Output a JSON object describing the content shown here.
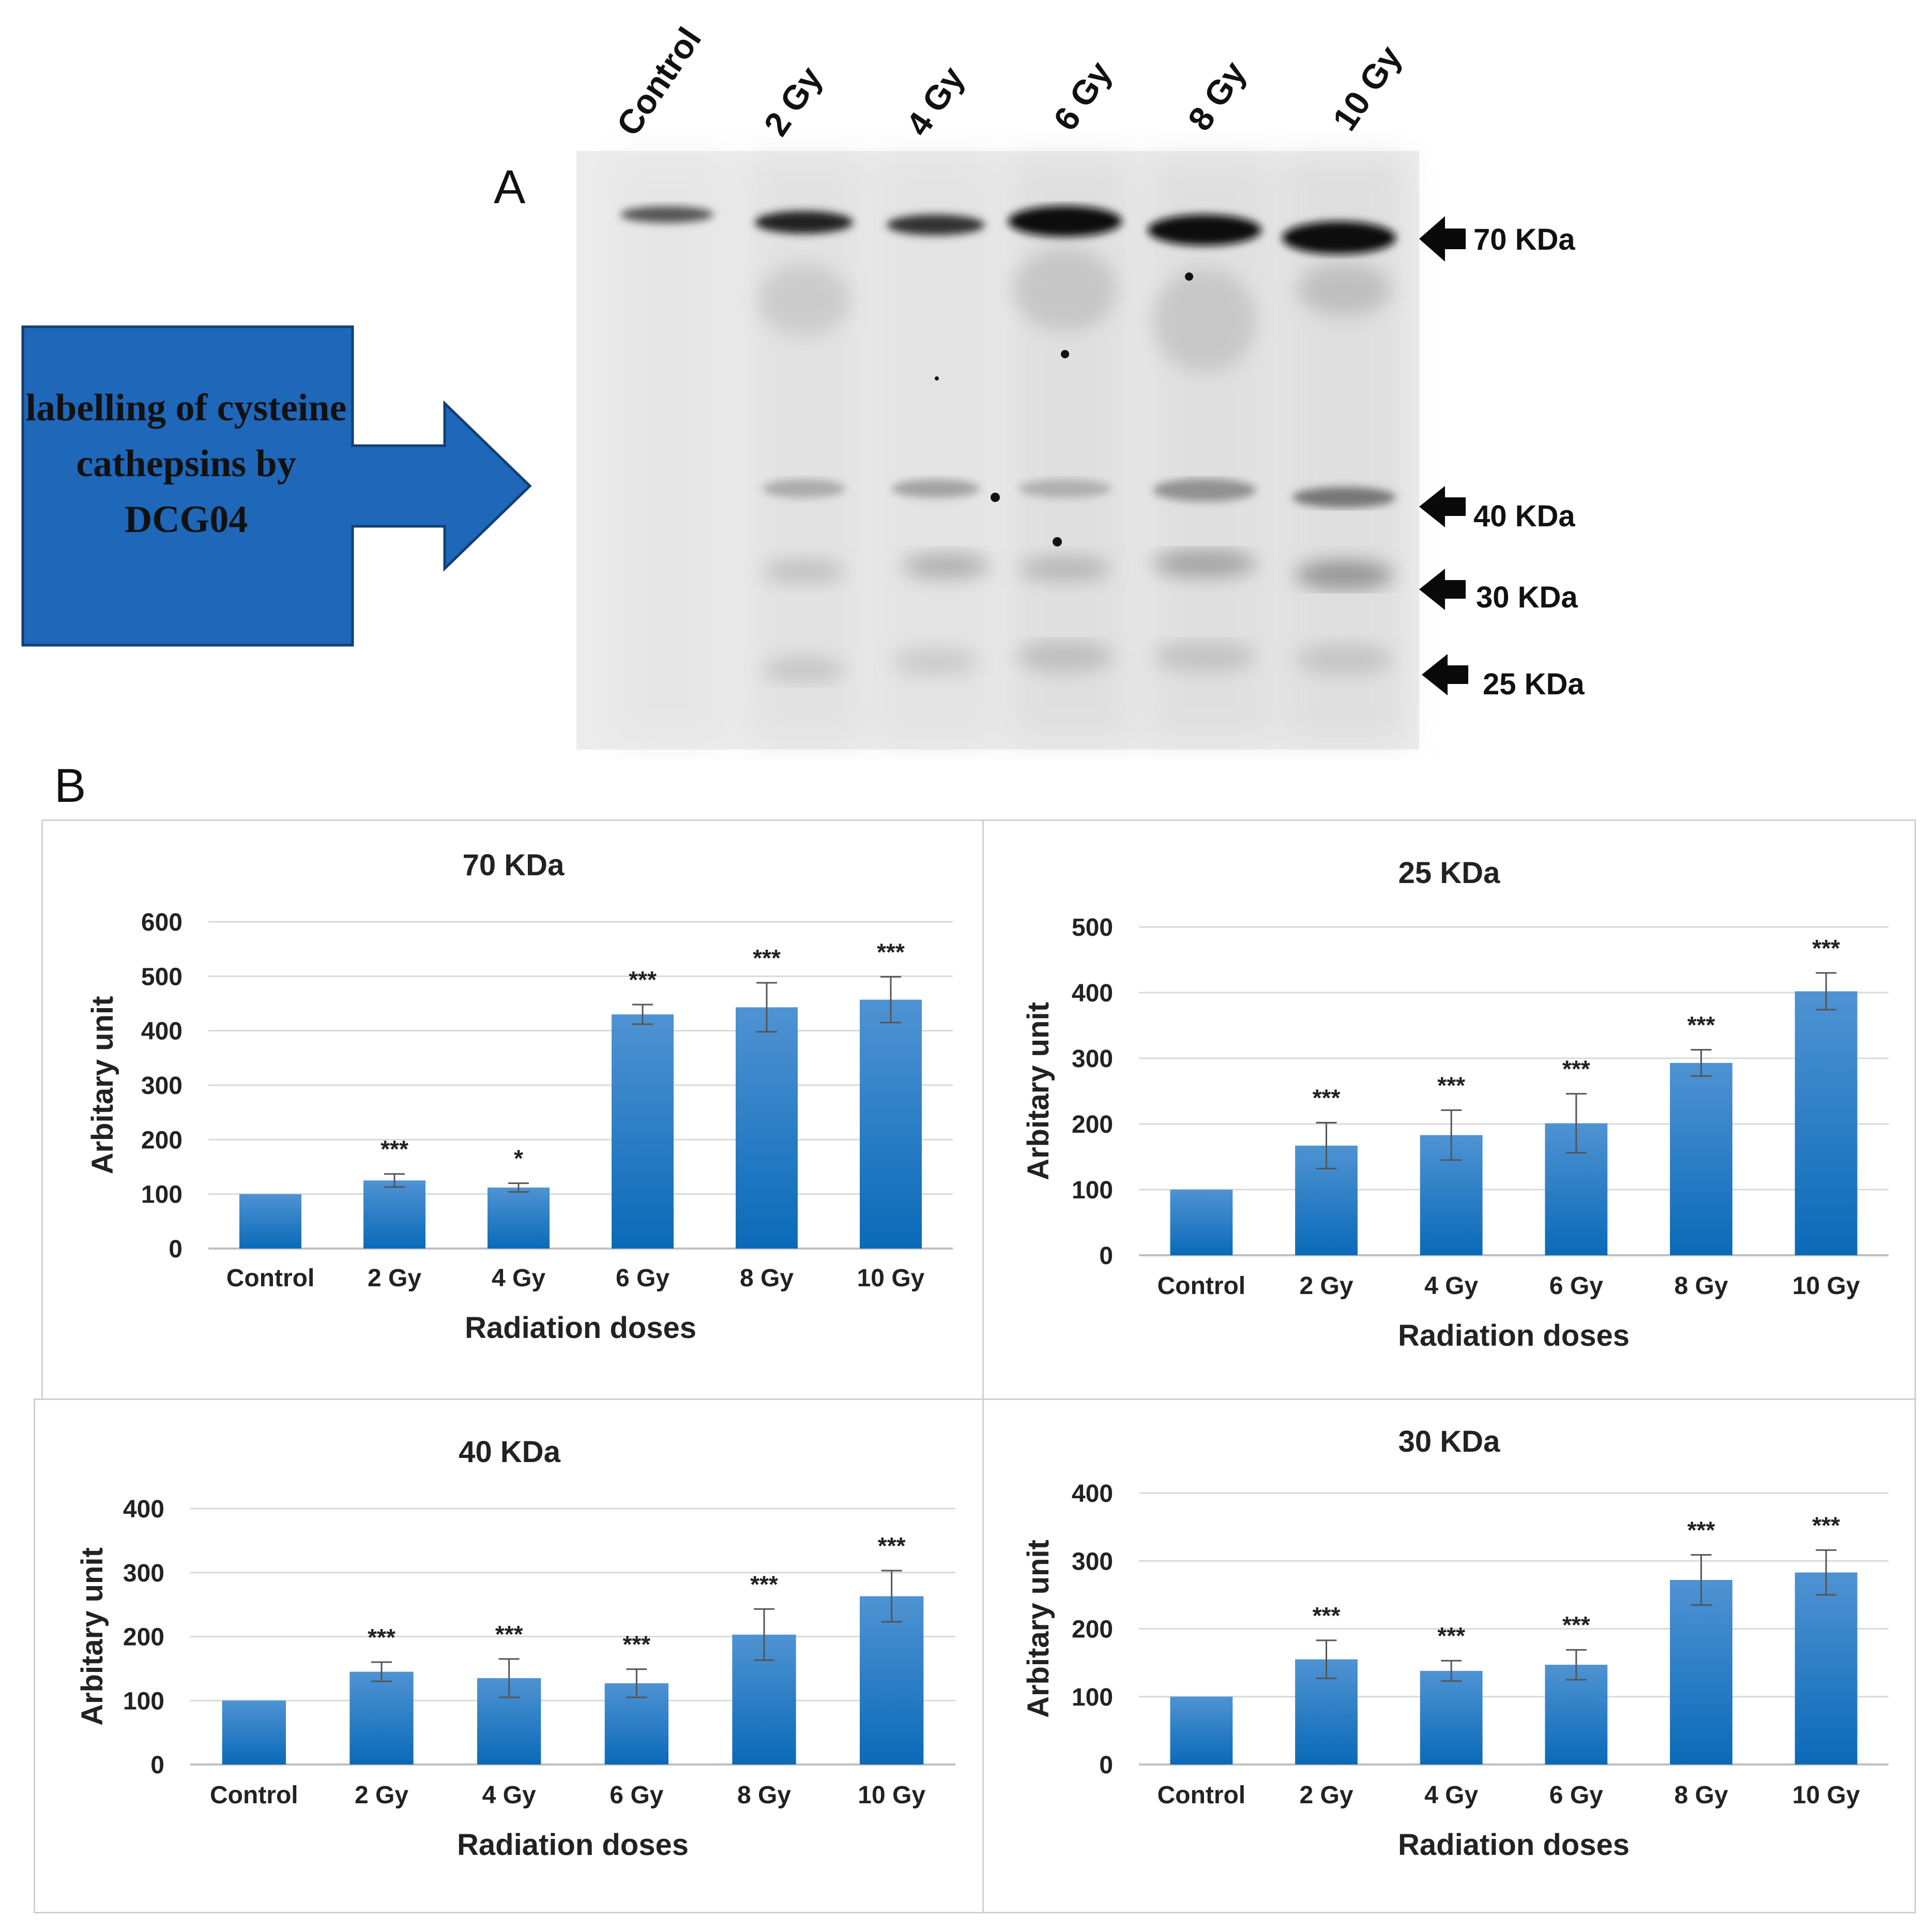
{
  "panel_a": {
    "letter": "A",
    "callout_text": "labelling of cysteine cathepsins by DCG04",
    "lanes": [
      "Control",
      "2 Gy",
      "4 Gy",
      "6 Gy",
      "8 Gy",
      "10 Gy"
    ],
    "markers": [
      "70 KDa",
      "40 KDa",
      "30 KDa",
      "25 KDa"
    ],
    "callout_color": "#1f67b8"
  },
  "panel_b": {
    "letter": "B"
  },
  "colors": {
    "bar_top": "#4f93d3",
    "bar_bottom": "#0a6ab8",
    "grid": "#d9d9d9",
    "axis": "#bfbfbf"
  },
  "chart_data": [
    {
      "type": "bar",
      "title": "70 KDa",
      "xlabel": "Radiation doses",
      "ylabel": "Arbitary unit",
      "categories": [
        "Control",
        "2 Gy",
        "4 Gy",
        "6 Gy",
        "8 Gy",
        "10 Gy"
      ],
      "values": [
        100,
        125,
        112,
        430,
        443,
        457
      ],
      "errors": [
        0,
        12,
        8,
        18,
        45,
        42
      ],
      "significance": [
        "",
        "***",
        "*",
        "***",
        "***",
        "***"
      ],
      "ylim": [
        0,
        600
      ],
      "yticks": [
        0,
        100,
        200,
        300,
        400,
        500,
        600
      ],
      "grid": true
    },
    {
      "type": "bar",
      "title": "25 KDa",
      "xlabel": "Radiation doses",
      "ylabel": "Arbitary unit",
      "categories": [
        "Control",
        "2 Gy",
        "4 Gy",
        "6 Gy",
        "8 Gy",
        "10 Gy"
      ],
      "values": [
        100,
        167,
        183,
        201,
        293,
        402
      ],
      "errors": [
        0,
        35,
        38,
        45,
        20,
        28
      ],
      "significance": [
        "",
        "***",
        "***",
        "***",
        "***",
        "***"
      ],
      "ylim": [
        0,
        500
      ],
      "yticks": [
        0,
        100,
        200,
        300,
        400,
        500
      ],
      "grid": true
    },
    {
      "type": "bar",
      "title": "40 KDa",
      "xlabel": "Radiation doses",
      "ylabel": "Arbitary unit",
      "categories": [
        "Control",
        "2 Gy",
        "4 Gy",
        "6 Gy",
        "8 Gy",
        "10 Gy"
      ],
      "values": [
        100,
        145,
        135,
        127,
        203,
        263
      ],
      "errors": [
        0,
        15,
        30,
        22,
        40,
        40
      ],
      "significance": [
        "",
        "***",
        "***",
        "***",
        "***",
        "***"
      ],
      "ylim": [
        0,
        400
      ],
      "yticks": [
        0,
        100,
        200,
        300,
        400
      ],
      "grid": true
    },
    {
      "type": "bar",
      "title": "30 KDa",
      "xlabel": "Radiation doses",
      "ylabel": "Arbitary unit",
      "categories": [
        "Control",
        "2 Gy",
        "4 Gy",
        "6 Gy",
        "8 Gy",
        "10 Gy"
      ],
      "values": [
        100,
        155,
        138,
        147,
        272,
        283
      ],
      "errors": [
        0,
        28,
        15,
        22,
        37,
        33
      ],
      "significance": [
        "",
        "***",
        "***",
        "***",
        "***",
        "***"
      ],
      "ylim": [
        0,
        400
      ],
      "yticks": [
        0,
        100,
        200,
        300,
        400
      ],
      "grid": true
    }
  ]
}
